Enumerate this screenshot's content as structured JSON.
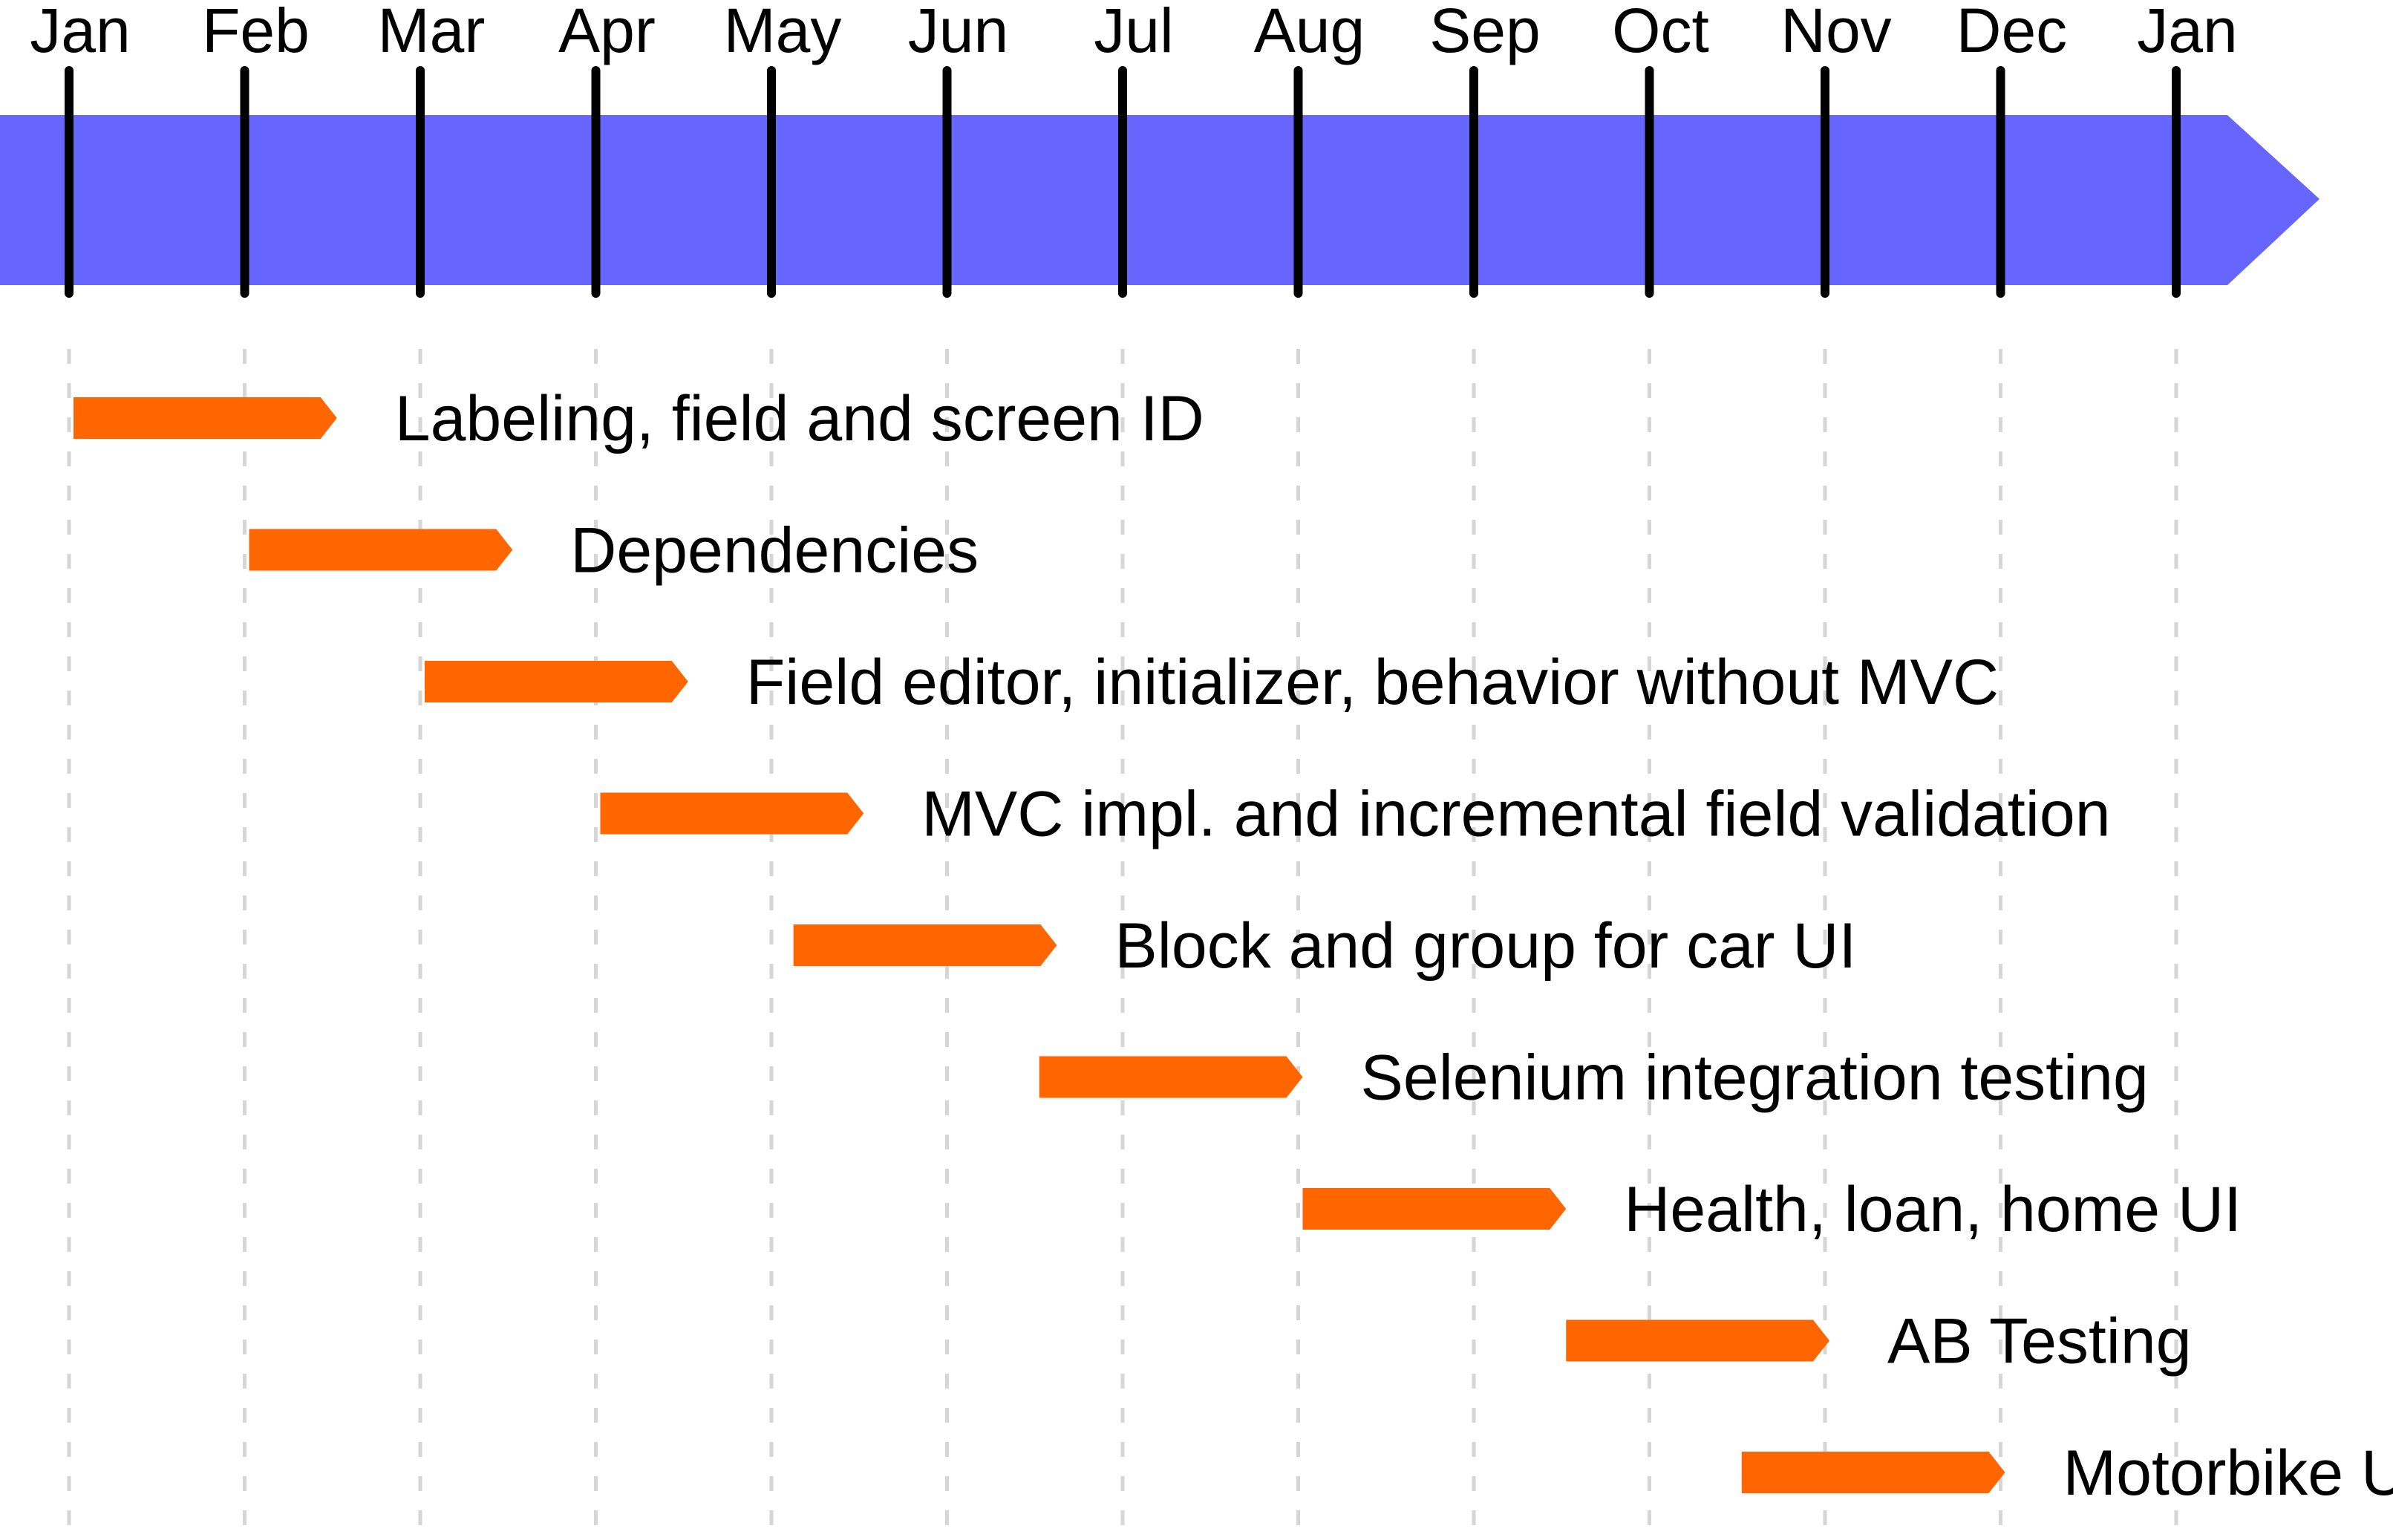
{
  "colors": {
    "band": "#6666ff",
    "task_bar": "#ff6600",
    "tick": "#000000",
    "gridline": "#d6d6d6",
    "text": "#000000",
    "background": "#ffffff"
  },
  "months": [
    "Jan",
    "Feb",
    "Mar",
    "Apr",
    "May",
    "Jun",
    "Jul",
    "Aug",
    "Sep",
    "Oct",
    "Nov",
    "Dec",
    "Jan"
  ],
  "tasks": [
    {
      "label": "Labeling, field and screen ID",
      "start_month": 0.0,
      "end_month": 1.5
    },
    {
      "label": "Dependencies",
      "start_month": 1.0,
      "end_month": 2.5
    },
    {
      "label": "Field editor, initializer, behavior without MVC",
      "start_month": 2.0,
      "end_month": 3.5
    },
    {
      "label": "MVC impl. and incremental field validation",
      "start_month": 3.0,
      "end_month": 4.5
    },
    {
      "label": "Block and group for car UI",
      "start_month": 4.1,
      "end_month": 5.6
    },
    {
      "label": "Selenium integration testing",
      "start_month": 5.5,
      "end_month": 7.0
    },
    {
      "label": "Health, loan, home UI",
      "start_month": 7.0,
      "end_month": 8.5
    },
    {
      "label": "AB Testing",
      "start_month": 8.5,
      "end_month": 10.0
    },
    {
      "label": "Motorbike UI",
      "start_month": 9.5,
      "end_month": 11.0
    }
  ]
}
